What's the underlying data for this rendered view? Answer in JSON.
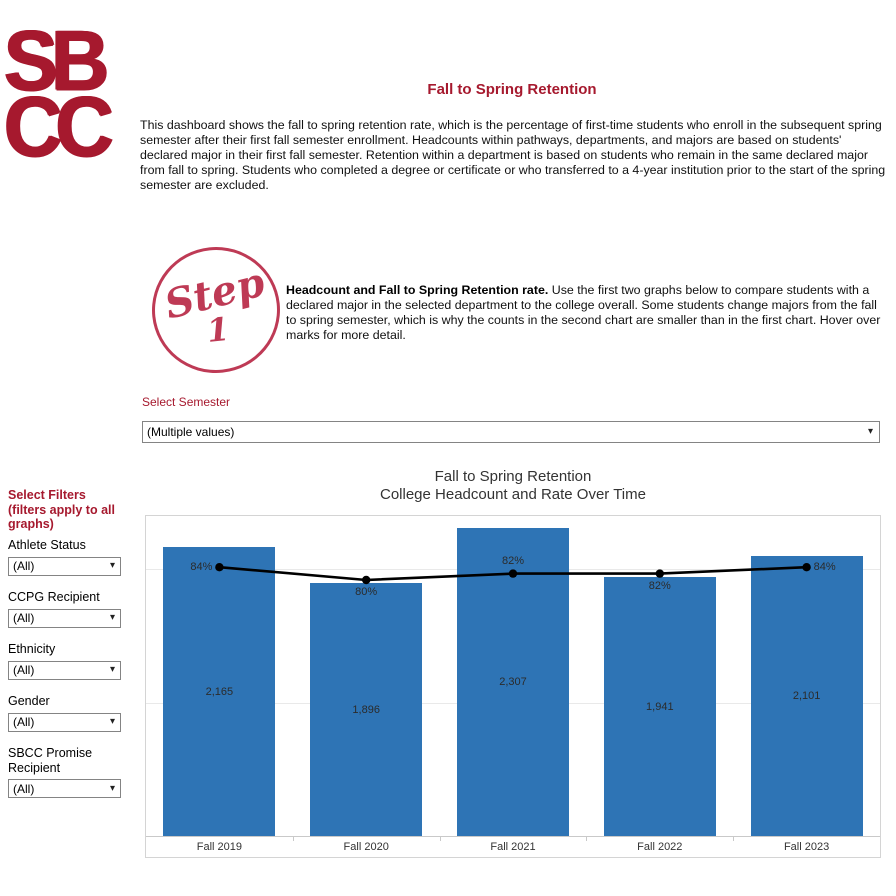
{
  "brand": {
    "logo_line1": "SB",
    "logo_line2": "CC",
    "color": "#A6192E"
  },
  "header": {
    "title": "Fall to Spring Retention",
    "description": "This dashboard shows the fall to spring retention rate, which is the percentage of first-time students who enroll in the subsequent spring semester after their first fall semester enrollment. Headcounts within pathways, departments, and majors are based on students' declared major in their first fall semester. Retention within a department is based on students who remain in the same declared major from fall to spring. Students who completed a degree or certificate or who transferred to a 4-year institution prior to the start of the spring semester are excluded."
  },
  "step1": {
    "circle_word": "Step",
    "circle_number": "1",
    "lead": "Headcount and Fall to Spring Retention rate.",
    "text": " Use the first two graphs below to compare students with a declared major in the selected department to the college overall. Some students change majors from the fall to spring semester, which is why the counts in the second chart are smaller than in the first chart. Hover over marks for more detail."
  },
  "semester_filter": {
    "label": "Select Semester",
    "value": "(Multiple values)",
    "arrow_icon": "▾"
  },
  "sidebar": {
    "heading": "Select Filters (filters apply to all graphs)",
    "filters": [
      {
        "label": "Athlete Status",
        "value": "(All)"
      },
      {
        "label": "CCPG Recipient",
        "value": "(All)"
      },
      {
        "label": "Ethnicity",
        "value": "(All)"
      },
      {
        "label": "Gender",
        "value": "(All)"
      },
      {
        "label": "SBCC Promise Recipient",
        "value": "(All)"
      }
    ]
  },
  "chart_data": {
    "type": "bar",
    "title": "Fall to Spring Retention",
    "subtitle": "College Headcount and Rate Over Time",
    "categories": [
      "Fall 2019",
      "Fall 2020",
      "Fall 2021",
      "Fall 2022",
      "Fall 2023"
    ],
    "series": [
      {
        "name": "College Headcount",
        "type": "bar",
        "values": [
          2165,
          1896,
          2307,
          1941,
          2101
        ],
        "labels": [
          "2,165",
          "1,896",
          "2,307",
          "1,941",
          "2,101"
        ],
        "color": "#2E74B5",
        "axis_min": 0,
        "axis_max": 2400
      },
      {
        "name": "Fall to Spring Retention Rate",
        "type": "line",
        "values": [
          84,
          80,
          82,
          82,
          84
        ],
        "labels": [
          "84%",
          "80%",
          "82%",
          "82%",
          "84%"
        ],
        "label_positions": [
          "left",
          "below",
          "above",
          "below",
          "right"
        ],
        "color": "#000000",
        "axis_min": 0,
        "axis_max": 100
      }
    ],
    "gridlines_headcount": [
      1000,
      2000
    ],
    "legend": "none",
    "xlabel": "",
    "ylabel": ""
  }
}
